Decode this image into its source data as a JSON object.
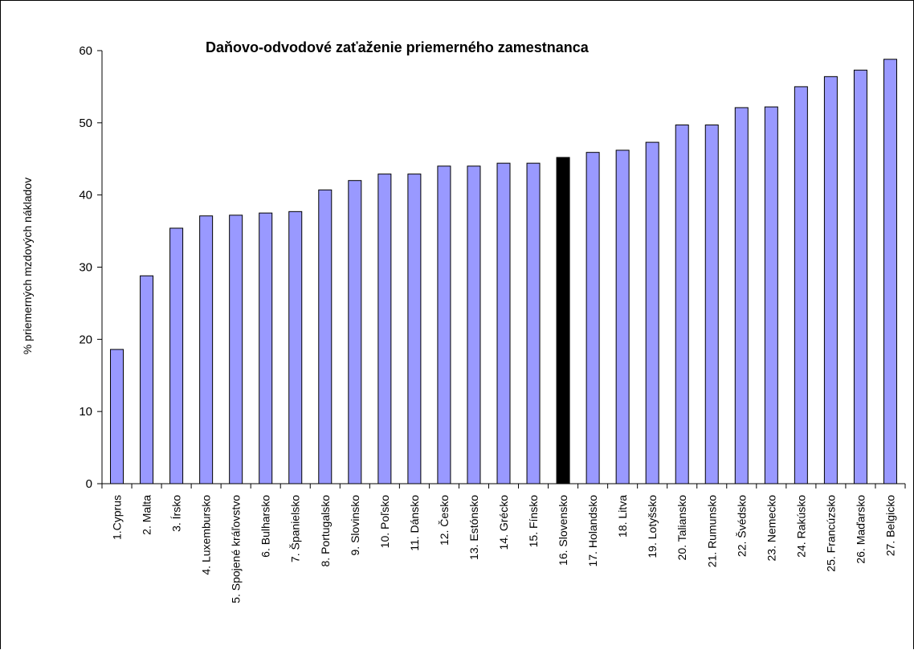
{
  "chart_data": {
    "type": "bar",
    "title": "Daňovo-odvodové  zaťaženie priemerného zamestnanca",
    "xlabel": "",
    "ylabel": "% priemerných mzdových nákladov",
    "ylim": [
      0,
      60
    ],
    "yticks": [
      0,
      10,
      20,
      30,
      40,
      50,
      60
    ],
    "grid": false,
    "legend": "none",
    "categories": [
      "1.Cyprus",
      "2. Malta",
      "3. Írsko",
      "4. Luxembursko",
      "5. Spojené kráľovstvo",
      "6. Bulharsko",
      "7. Španielsko",
      "8. Portugalsko",
      "9. Slovinsko",
      "10. Poľsko",
      "11. Dánsko",
      "12. Česko",
      "13. Estónsko",
      "14. Grécko",
      "15. Fínsko",
      "16. Slovensko",
      "17. Holandsko",
      "18. Litva",
      "19. Lotyšsko",
      "20. Taliansko",
      "21. Rumunsko",
      "22. Švédsko",
      "23. Nemecko",
      "24. Rakúsko",
      "25. Francúzsko",
      "26. Maďarsko",
      "27. Belgicko"
    ],
    "values": [
      18.6,
      28.8,
      35.4,
      37.1,
      37.2,
      37.5,
      37.7,
      40.7,
      42.0,
      42.9,
      42.9,
      44.0,
      44.0,
      44.4,
      44.4,
      45.2,
      45.9,
      46.2,
      47.3,
      49.7,
      49.7,
      52.1,
      52.2,
      55.0,
      56.4,
      57.3,
      58.8
    ],
    "colors": {
      "bar": "#9999ff",
      "highlight": "#000000",
      "outline": "#000000"
    },
    "highlight_index": 15
  }
}
